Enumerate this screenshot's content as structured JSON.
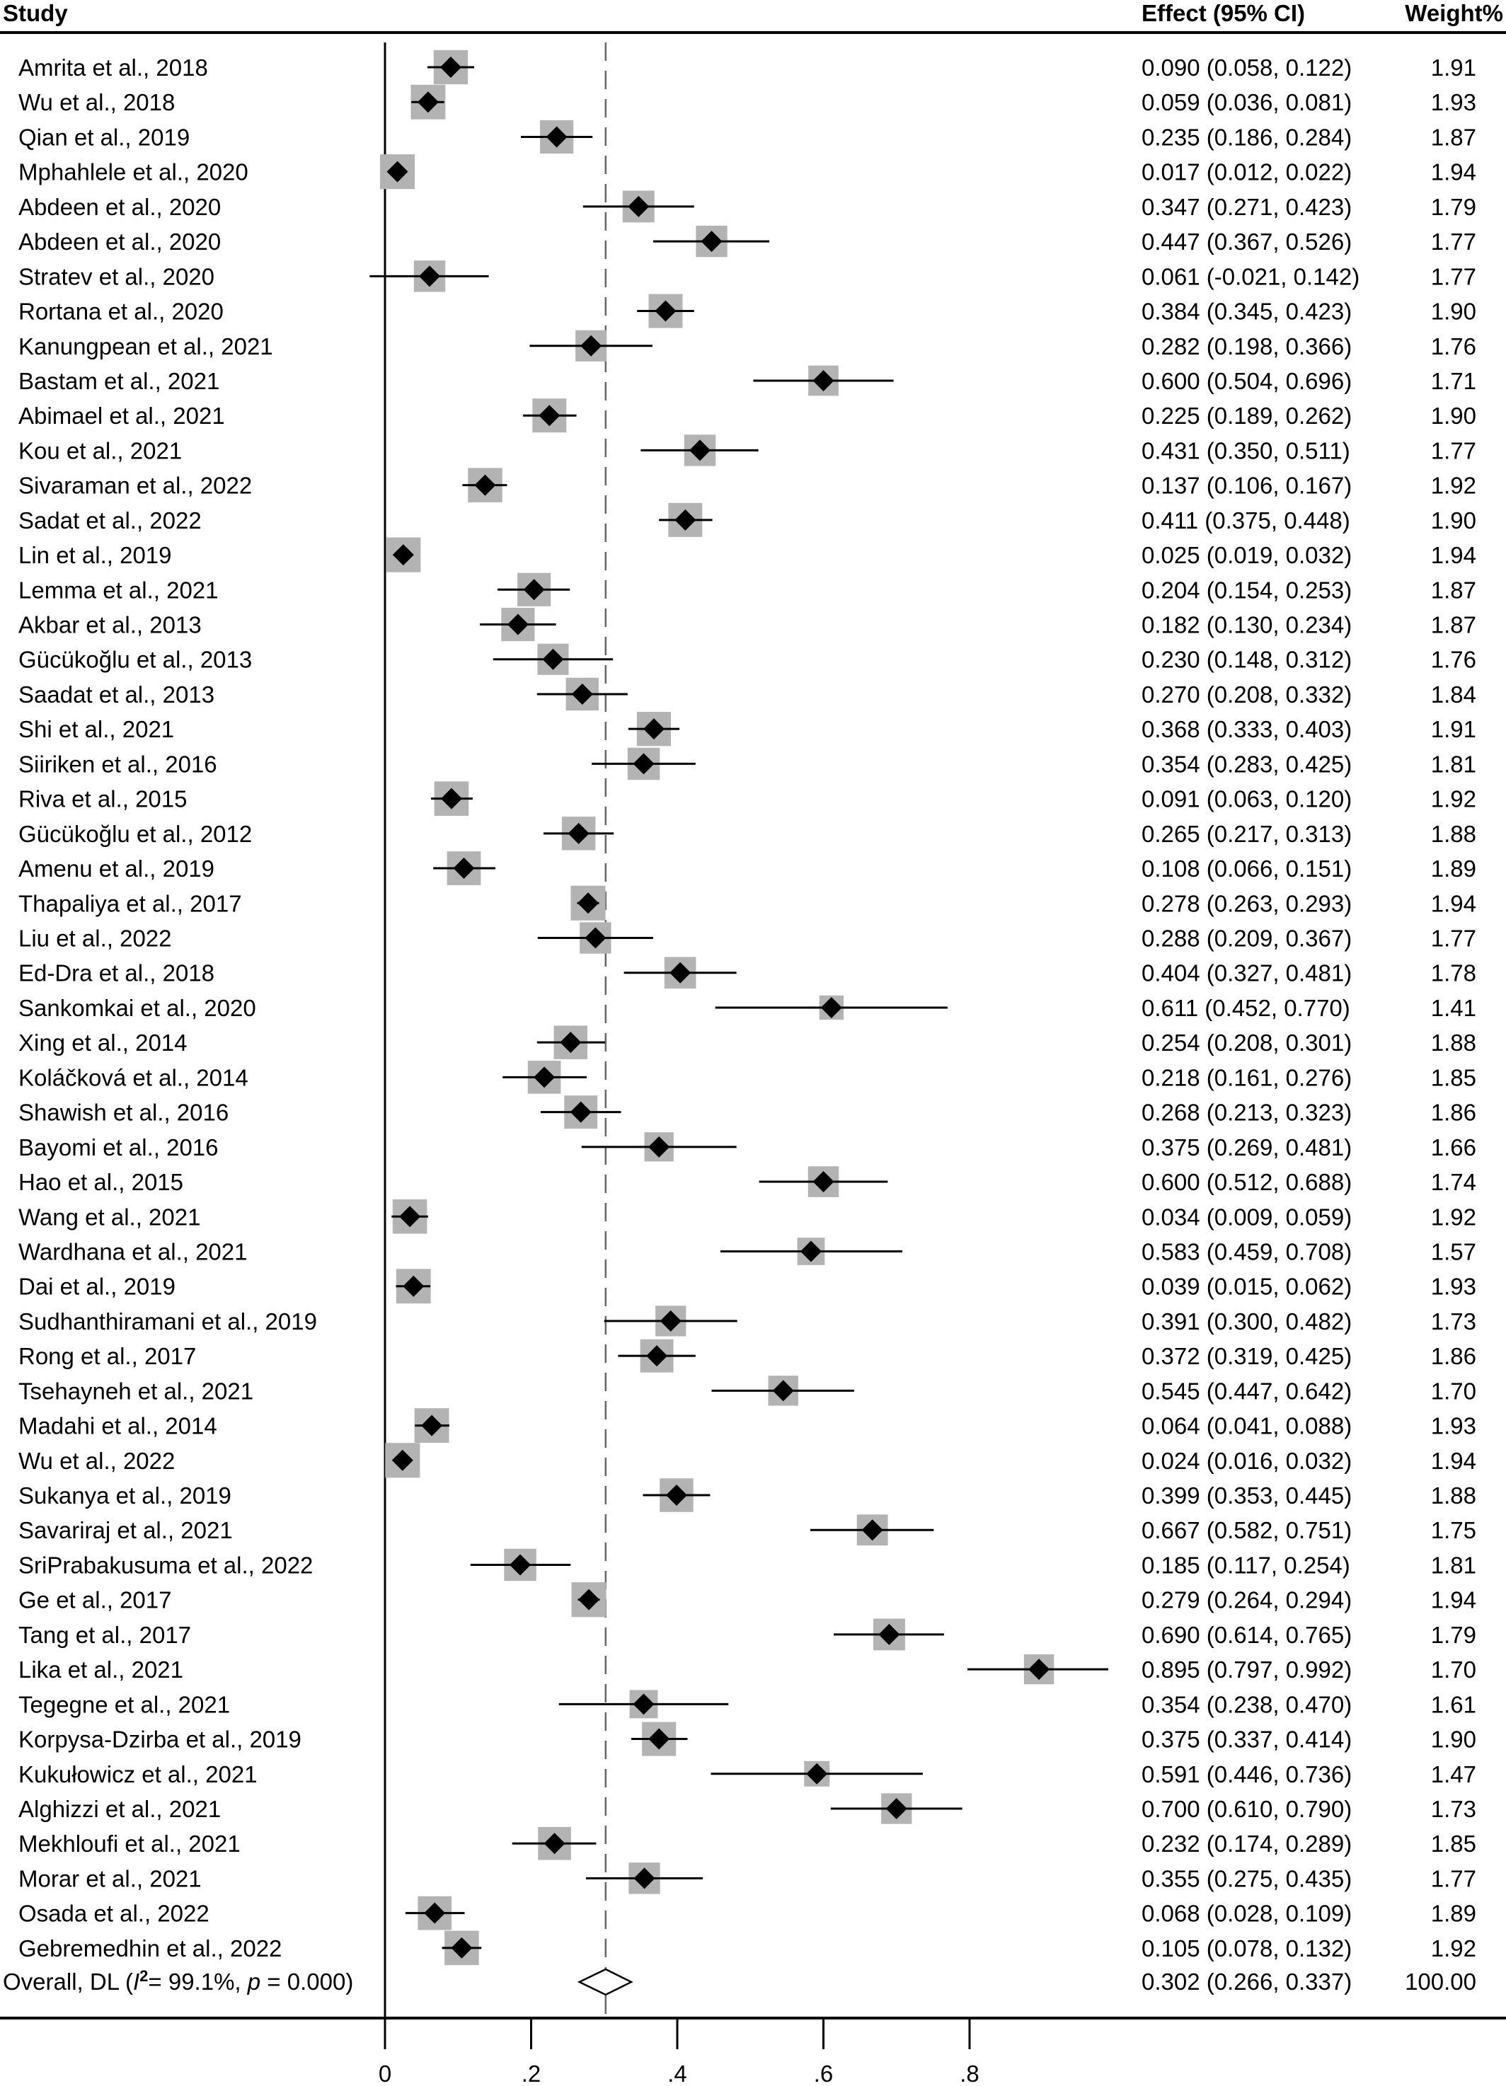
{
  "headers": {
    "study": "Study",
    "effect": "Effect (95% CI)",
    "weight": "Weight%"
  },
  "overall": {
    "label_prefix": "Overall, DL (",
    "i2_symbol": "I",
    "i2_sup": "2",
    "i2_text": "= 99.1%, ",
    "p_symbol": "p",
    "p_text": " = 0.000)",
    "effect_text": "0.302 (0.266, 0.337)",
    "weight_text": "100.00",
    "est": 0.302,
    "lo": 0.266,
    "hi": 0.337
  },
  "chart_data": {
    "type": "forest",
    "xlim": [
      0,
      0.8
    ],
    "ticks": [
      0,
      0.2,
      0.4,
      0.6,
      0.8
    ],
    "tick_labels": [
      "0",
      ".2",
      ".4",
      ".6",
      ".8"
    ],
    "reference_line": 0.302,
    "studies": [
      {
        "study": "Amrita et al., 2018",
        "est": 0.09,
        "lo": 0.058,
        "hi": 0.122,
        "weight": 1.91,
        "effect_text": "0.090 (0.058, 0.122)",
        "weight_text": "1.91"
      },
      {
        "study": "Wu et al., 2018",
        "est": 0.059,
        "lo": 0.036,
        "hi": 0.081,
        "weight": 1.93,
        "effect_text": "0.059 (0.036, 0.081)",
        "weight_text": "1.93"
      },
      {
        "study": "Qian et al., 2019",
        "est": 0.235,
        "lo": 0.186,
        "hi": 0.284,
        "weight": 1.87,
        "effect_text": "0.235 (0.186, 0.284)",
        "weight_text": "1.87"
      },
      {
        "study": "Mphahlele et al., 2020",
        "est": 0.017,
        "lo": 0.012,
        "hi": 0.022,
        "weight": 1.94,
        "effect_text": "0.017 (0.012, 0.022)",
        "weight_text": "1.94"
      },
      {
        "study": "Abdeen et al., 2020",
        "est": 0.347,
        "lo": 0.271,
        "hi": 0.423,
        "weight": 1.79,
        "effect_text": "0.347 (0.271, 0.423)",
        "weight_text": "1.79"
      },
      {
        "study": "Abdeen et al., 2020",
        "est": 0.447,
        "lo": 0.367,
        "hi": 0.526,
        "weight": 1.77,
        "effect_text": "0.447 (0.367, 0.526)",
        "weight_text": "1.77"
      },
      {
        "study": "Stratev et al., 2020",
        "est": 0.061,
        "lo": -0.021,
        "hi": 0.142,
        "weight": 1.77,
        "effect_text": "0.061 (-0.021, 0.142)",
        "weight_text": "1.77"
      },
      {
        "study": "Rortana et al., 2020",
        "est": 0.384,
        "lo": 0.345,
        "hi": 0.423,
        "weight": 1.9,
        "effect_text": "0.384 (0.345, 0.423)",
        "weight_text": "1.90"
      },
      {
        "study": "Kanungpean et al., 2021",
        "est": 0.282,
        "lo": 0.198,
        "hi": 0.366,
        "weight": 1.76,
        "effect_text": "0.282 (0.198, 0.366)",
        "weight_text": "1.76"
      },
      {
        "study": "Bastam et al., 2021",
        "est": 0.6,
        "lo": 0.504,
        "hi": 0.696,
        "weight": 1.71,
        "effect_text": "0.600 (0.504, 0.696)",
        "weight_text": "1.71"
      },
      {
        "study": "Abimael et al., 2021",
        "est": 0.225,
        "lo": 0.189,
        "hi": 0.262,
        "weight": 1.9,
        "effect_text": "0.225 (0.189, 0.262)",
        "weight_text": "1.90"
      },
      {
        "study": "Kou et al., 2021",
        "est": 0.431,
        "lo": 0.35,
        "hi": 0.511,
        "weight": 1.77,
        "effect_text": "0.431 (0.350, 0.511)",
        "weight_text": "1.77"
      },
      {
        "study": "Sivaraman et al., 2022",
        "est": 0.137,
        "lo": 0.106,
        "hi": 0.167,
        "weight": 1.92,
        "effect_text": "0.137 (0.106, 0.167)",
        "weight_text": "1.92"
      },
      {
        "study": "Sadat et al., 2022",
        "est": 0.411,
        "lo": 0.375,
        "hi": 0.448,
        "weight": 1.9,
        "effect_text": "0.411 (0.375, 0.448)",
        "weight_text": "1.90"
      },
      {
        "study": "Lin et al., 2019",
        "est": 0.025,
        "lo": 0.019,
        "hi": 0.032,
        "weight": 1.94,
        "effect_text": "0.025 (0.019, 0.032)",
        "weight_text": "1.94"
      },
      {
        "study": "Lemma et al., 2021",
        "est": 0.204,
        "lo": 0.154,
        "hi": 0.253,
        "weight": 1.87,
        "effect_text": "0.204 (0.154, 0.253)",
        "weight_text": "1.87"
      },
      {
        "study": "Akbar et al., 2013",
        "est": 0.182,
        "lo": 0.13,
        "hi": 0.234,
        "weight": 1.87,
        "effect_text": "0.182 (0.130, 0.234)",
        "weight_text": "1.87"
      },
      {
        "study": "Gücükoğlu et al., 2013",
        "est": 0.23,
        "lo": 0.148,
        "hi": 0.312,
        "weight": 1.76,
        "effect_text": "0.230 (0.148, 0.312)",
        "weight_text": "1.76"
      },
      {
        "study": "Saadat et al., 2013",
        "est": 0.27,
        "lo": 0.208,
        "hi": 0.332,
        "weight": 1.84,
        "effect_text": "0.270 (0.208, 0.332)",
        "weight_text": "1.84"
      },
      {
        "study": "Shi et al., 2021",
        "est": 0.368,
        "lo": 0.333,
        "hi": 0.403,
        "weight": 1.91,
        "effect_text": "0.368 (0.333, 0.403)",
        "weight_text": "1.91"
      },
      {
        "study": "Siiriken et al., 2016",
        "est": 0.354,
        "lo": 0.283,
        "hi": 0.425,
        "weight": 1.81,
        "effect_text": "0.354 (0.283, 0.425)",
        "weight_text": "1.81"
      },
      {
        "study": "Riva et al., 2015",
        "est": 0.091,
        "lo": 0.063,
        "hi": 0.12,
        "weight": 1.92,
        "effect_text": "0.091 (0.063, 0.120)",
        "weight_text": "1.92"
      },
      {
        "study": "Gücükoğlu et al., 2012",
        "est": 0.265,
        "lo": 0.217,
        "hi": 0.313,
        "weight": 1.88,
        "effect_text": "0.265 (0.217, 0.313)",
        "weight_text": "1.88"
      },
      {
        "study": "Amenu et al., 2019",
        "est": 0.108,
        "lo": 0.066,
        "hi": 0.151,
        "weight": 1.89,
        "effect_text": "0.108 (0.066, 0.151)",
        "weight_text": "1.89"
      },
      {
        "study": "Thapaliya et al., 2017",
        "est": 0.278,
        "lo": 0.263,
        "hi": 0.293,
        "weight": 1.94,
        "effect_text": "0.278 (0.263, 0.293)",
        "weight_text": "1.94"
      },
      {
        "study": "Liu et al., 2022",
        "est": 0.288,
        "lo": 0.209,
        "hi": 0.367,
        "weight": 1.77,
        "effect_text": "0.288 (0.209, 0.367)",
        "weight_text": "1.77"
      },
      {
        "study": "Ed-Dra et al., 2018",
        "est": 0.404,
        "lo": 0.327,
        "hi": 0.481,
        "weight": 1.78,
        "effect_text": "0.404 (0.327, 0.481)",
        "weight_text": "1.78"
      },
      {
        "study": "Sankomkai et al., 2020",
        "est": 0.611,
        "lo": 0.452,
        "hi": 0.77,
        "weight": 1.41,
        "effect_text": "0.611 (0.452, 0.770)",
        "weight_text": "1.41"
      },
      {
        "study": "Xing et al., 2014",
        "est": 0.254,
        "lo": 0.208,
        "hi": 0.301,
        "weight": 1.88,
        "effect_text": "0.254 (0.208, 0.301)",
        "weight_text": "1.88"
      },
      {
        "study": "Koláčková et al., 2014",
        "est": 0.218,
        "lo": 0.161,
        "hi": 0.276,
        "weight": 1.85,
        "effect_text": "0.218 (0.161, 0.276)",
        "weight_text": "1.85"
      },
      {
        "study": "Shawish et al., 2016",
        "est": 0.268,
        "lo": 0.213,
        "hi": 0.323,
        "weight": 1.86,
        "effect_text": "0.268 (0.213, 0.323)",
        "weight_text": "1.86"
      },
      {
        "study": "Bayomi et al., 2016",
        "est": 0.375,
        "lo": 0.269,
        "hi": 0.481,
        "weight": 1.66,
        "effect_text": "0.375 (0.269, 0.481)",
        "weight_text": "1.66"
      },
      {
        "study": "Hao et al., 2015",
        "est": 0.6,
        "lo": 0.512,
        "hi": 0.688,
        "weight": 1.74,
        "effect_text": "0.600 (0.512, 0.688)",
        "weight_text": "1.74"
      },
      {
        "study": "Wang et al., 2021",
        "est": 0.034,
        "lo": 0.009,
        "hi": 0.059,
        "weight": 1.92,
        "effect_text": "0.034 (0.009, 0.059)",
        "weight_text": "1.92"
      },
      {
        "study": "Wardhana et al., 2021",
        "est": 0.583,
        "lo": 0.459,
        "hi": 0.708,
        "weight": 1.57,
        "effect_text": "0.583 (0.459, 0.708)",
        "weight_text": "1.57"
      },
      {
        "study": "Dai et al., 2019",
        "est": 0.039,
        "lo": 0.015,
        "hi": 0.062,
        "weight": 1.93,
        "effect_text": "0.039 (0.015, 0.062)",
        "weight_text": "1.93"
      },
      {
        "study": "Sudhanthiramani et al., 2019",
        "est": 0.391,
        "lo": 0.3,
        "hi": 0.482,
        "weight": 1.73,
        "effect_text": "0.391 (0.300, 0.482)",
        "weight_text": "1.73"
      },
      {
        "study": "Rong et al., 2017",
        "est": 0.372,
        "lo": 0.319,
        "hi": 0.425,
        "weight": 1.86,
        "effect_text": "0.372 (0.319, 0.425)",
        "weight_text": "1.86"
      },
      {
        "study": "Tsehayneh et al., 2021",
        "est": 0.545,
        "lo": 0.447,
        "hi": 0.642,
        "weight": 1.7,
        "effect_text": "0.545 (0.447, 0.642)",
        "weight_text": "1.70"
      },
      {
        "study": "Madahi et al., 2014",
        "est": 0.064,
        "lo": 0.041,
        "hi": 0.088,
        "weight": 1.93,
        "effect_text": "0.064 (0.041, 0.088)",
        "weight_text": "1.93"
      },
      {
        "study": "Wu et al., 2022",
        "est": 0.024,
        "lo": 0.016,
        "hi": 0.032,
        "weight": 1.94,
        "effect_text": "0.024 (0.016, 0.032)",
        "weight_text": "1.94"
      },
      {
        "study": "Sukanya et al., 2019",
        "est": 0.399,
        "lo": 0.353,
        "hi": 0.445,
        "weight": 1.88,
        "effect_text": "0.399 (0.353, 0.445)",
        "weight_text": "1.88"
      },
      {
        "study": "Savariraj et al., 2021",
        "est": 0.667,
        "lo": 0.582,
        "hi": 0.751,
        "weight": 1.75,
        "effect_text": "0.667 (0.582, 0.751)",
        "weight_text": "1.75"
      },
      {
        "study": "SriPrabakusuma et al., 2022",
        "est": 0.185,
        "lo": 0.117,
        "hi": 0.254,
        "weight": 1.81,
        "effect_text": "0.185 (0.117, 0.254)",
        "weight_text": "1.81"
      },
      {
        "study": "Ge et al., 2017",
        "est": 0.279,
        "lo": 0.264,
        "hi": 0.294,
        "weight": 1.94,
        "effect_text": "0.279 (0.264, 0.294)",
        "weight_text": "1.94"
      },
      {
        "study": "Tang et al., 2017",
        "est": 0.69,
        "lo": 0.614,
        "hi": 0.765,
        "weight": 1.79,
        "effect_text": "0.690 (0.614, 0.765)",
        "weight_text": "1.79"
      },
      {
        "study": "Lika et al., 2021",
        "est": 0.895,
        "lo": 0.797,
        "hi": 0.992,
        "weight": 1.7,
        "effect_text": "0.895 (0.797, 0.992)",
        "weight_text": "1.70"
      },
      {
        "study": "Tegegne et al., 2021",
        "est": 0.354,
        "lo": 0.238,
        "hi": 0.47,
        "weight": 1.61,
        "effect_text": "0.354 (0.238, 0.470)",
        "weight_text": "1.61"
      },
      {
        "study": "Korpysa-Dzirba et al., 2019",
        "est": 0.375,
        "lo": 0.337,
        "hi": 0.414,
        "weight": 1.9,
        "effect_text": "0.375 (0.337, 0.414)",
        "weight_text": "1.90"
      },
      {
        "study": "Kukułowicz et al., 2021",
        "est": 0.591,
        "lo": 0.446,
        "hi": 0.736,
        "weight": 1.47,
        "effect_text": "0.591 (0.446, 0.736)",
        "weight_text": "1.47"
      },
      {
        "study": "Alghizzi et al., 2021",
        "est": 0.7,
        "lo": 0.61,
        "hi": 0.79,
        "weight": 1.73,
        "effect_text": "0.700 (0.610, 0.790)",
        "weight_text": "1.73"
      },
      {
        "study": "Mekhloufi et al., 2021",
        "est": 0.232,
        "lo": 0.174,
        "hi": 0.289,
        "weight": 1.85,
        "effect_text": "0.232 (0.174, 0.289)",
        "weight_text": "1.85"
      },
      {
        "study": "Morar et al., 2021",
        "est": 0.355,
        "lo": 0.275,
        "hi": 0.435,
        "weight": 1.77,
        "effect_text": "0.355 (0.275, 0.435)",
        "weight_text": "1.77"
      },
      {
        "study": "Osada et al., 2022",
        "est": 0.068,
        "lo": 0.028,
        "hi": 0.109,
        "weight": 1.89,
        "effect_text": "0.068 (0.028, 0.109)",
        "weight_text": "1.89"
      },
      {
        "study": "Gebremedhin et al., 2022",
        "est": 0.105,
        "lo": 0.078,
        "hi": 0.132,
        "weight": 1.92,
        "effect_text": "0.105 (0.078, 0.132)",
        "weight_text": "1.92"
      }
    ]
  },
  "colors": {
    "weight_box": "#b3b3b3",
    "marker": "#000000",
    "axis": "#000000",
    "ref_line": "#666666",
    "background": "#ffffff"
  }
}
